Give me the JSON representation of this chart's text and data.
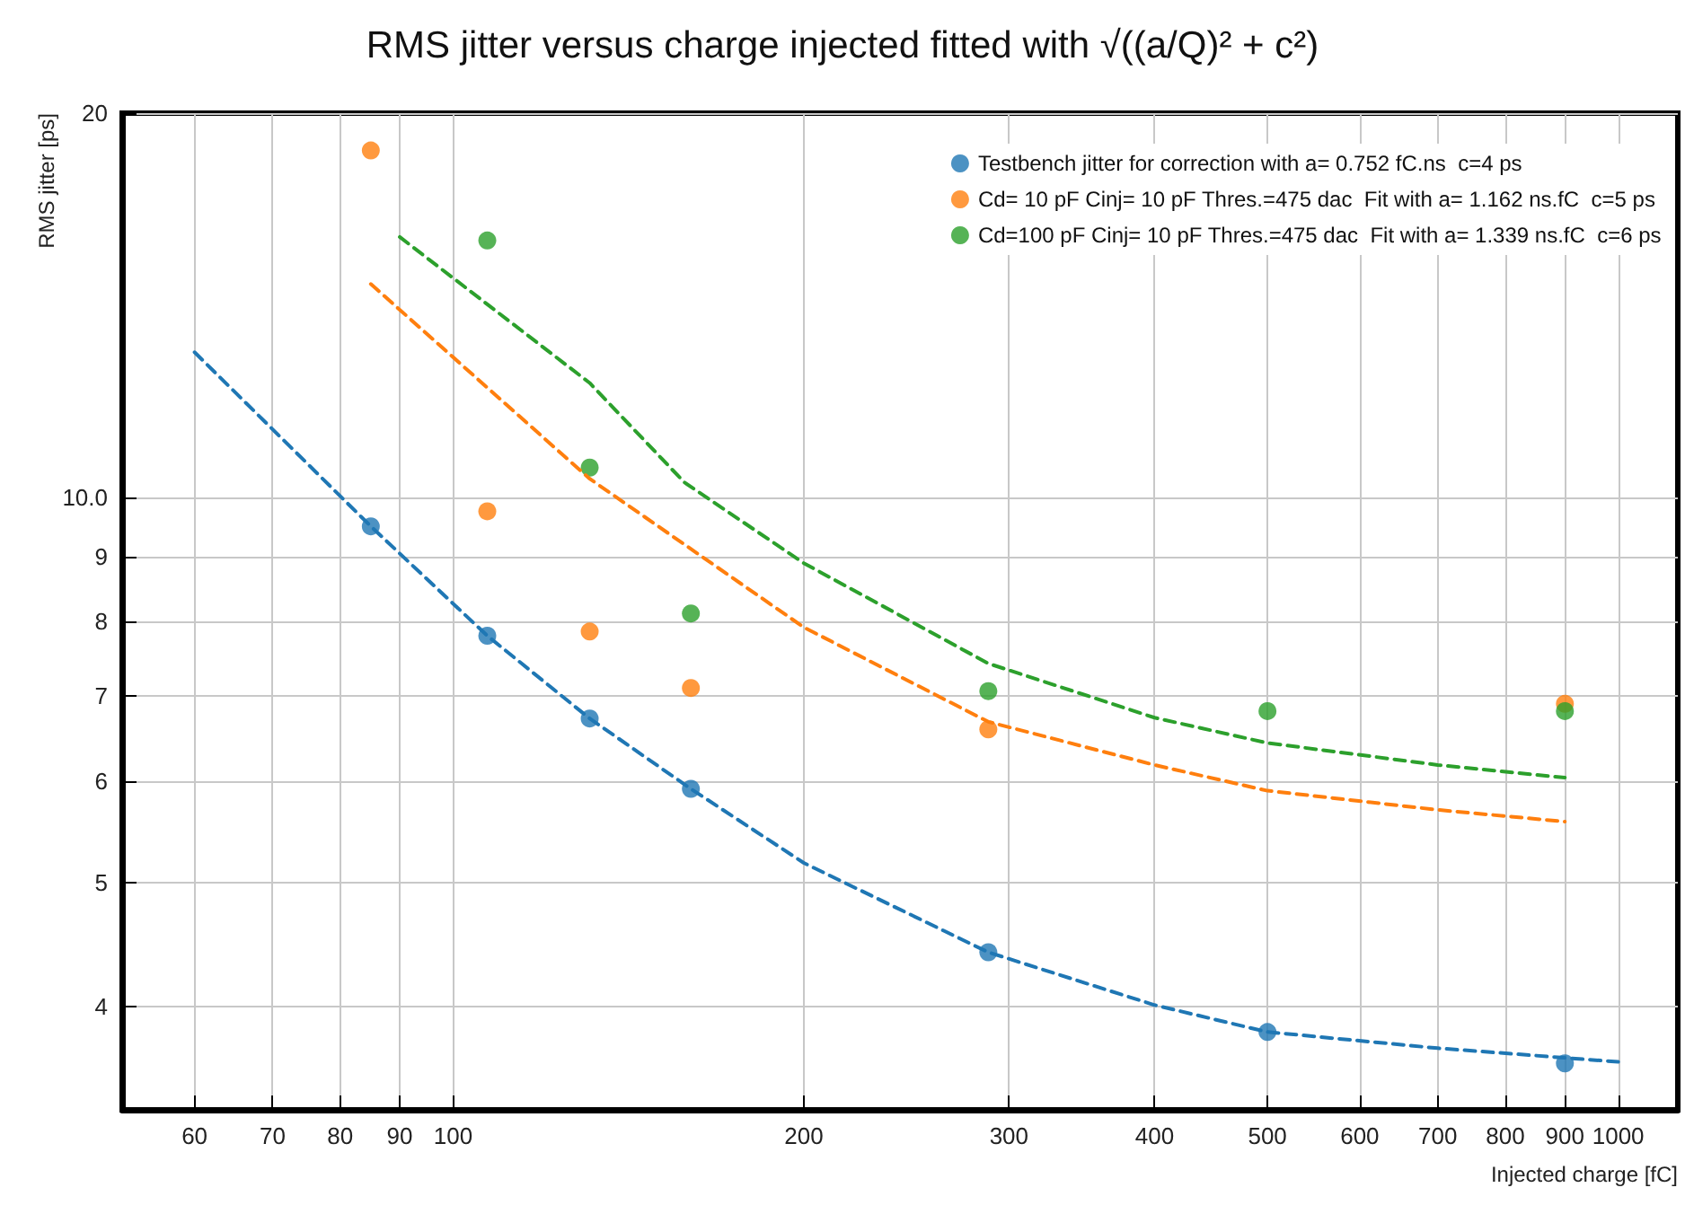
{
  "chart_data": {
    "type": "scatter",
    "title": "RMS jitter versus charge injected fitted with √((a/Q)² + c²)",
    "xlabel": "Injected charge [fC]",
    "ylabel": "RMS jitter [ps]",
    "log": "xy",
    "grid": true,
    "legend": "top right",
    "marker": "circle",
    "xlim": [
      52,
      1125
    ],
    "xticks": [
      60,
      70,
      80,
      90,
      100,
      200,
      300,
      400,
      500,
      600,
      700,
      800,
      900,
      1000
    ],
    "ylim": [
      3.32,
      20
    ],
    "yticks": [
      4,
      5,
      6,
      7,
      8,
      9,
      {
        "value": 10,
        "label": "10.0"
      },
      20
    ],
    "series": [
      {
        "name": "Testbench jitter for correction with a= 0.752 fC.ns  c=4 ps",
        "color": "#1f77b4",
        "x": [
          85,
          107,
          131,
          160,
          288,
          500,
          900
        ],
        "values": [
          9.5,
          7.8,
          6.72,
          5.92,
          4.41,
          3.82,
          3.61
        ]
      },
      {
        "name": "Cd= 10 pF Cinj= 10 pF Thres.=475 dac  Fit with a= 1.162 ns.fC  c=5 ps",
        "color": "#ff7f0e",
        "x": [
          85,
          107,
          131,
          160,
          288,
          900
        ],
        "values": [
          18.7,
          9.76,
          7.86,
          7.1,
          6.59,
          6.9
        ]
      },
      {
        "name": "Cd=100 pF Cinj= 10 pF Thres.=475 dac  Fit with a= 1.339 ns.fC  c=6 ps",
        "color": "#2ca02c",
        "x": [
          107,
          131,
          160,
          288,
          500,
          900
        ],
        "values": [
          15.9,
          10.56,
          8.12,
          7.06,
          6.81,
          6.81
        ]
      },
      {
        "type": "line",
        "line_style": "dashed",
        "marker": "none",
        "color": "#1f77b4",
        "x": [
          60,
          85,
          107,
          131,
          160,
          200,
          288,
          400,
          500,
          700,
          1000
        ],
        "values": [
          13.0,
          9.5,
          7.8,
          6.72,
          5.92,
          5.18,
          4.41,
          4.01,
          3.82,
          3.71,
          3.62
        ]
      },
      {
        "type": "line",
        "line_style": "dashed",
        "marker": "none",
        "color": "#ff7f0e",
        "x": [
          85,
          131,
          200,
          288,
          400,
          500,
          700,
          900
        ],
        "values": [
          14.7,
          10.35,
          7.92,
          6.68,
          6.18,
          5.9,
          5.7,
          5.58
        ]
      },
      {
        "type": "line",
        "line_style": "dashed",
        "marker": "none",
        "color": "#2ca02c",
        "x": [
          90,
          131,
          158,
          200,
          288,
          400,
          500,
          700,
          900
        ],
        "values": [
          16.0,
          12.3,
          10.28,
          8.89,
          7.42,
          6.73,
          6.43,
          6.18,
          6.04
        ]
      }
    ]
  }
}
